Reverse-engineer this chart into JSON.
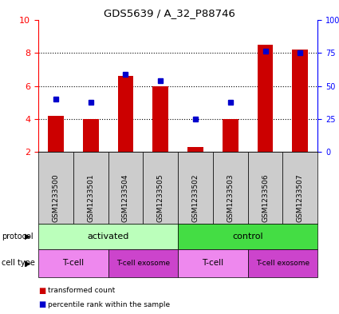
{
  "title": "GDS5639 / A_32_P88746",
  "samples": [
    "GSM1233500",
    "GSM1233501",
    "GSM1233504",
    "GSM1233505",
    "GSM1233502",
    "GSM1233503",
    "GSM1233506",
    "GSM1233507"
  ],
  "red_values": [
    4.2,
    4.0,
    6.6,
    6.0,
    2.3,
    4.0,
    8.5,
    8.2
  ],
  "blue_values": [
    5.2,
    5.0,
    6.7,
    6.3,
    4.0,
    5.0,
    8.1,
    8.0
  ],
  "y_min": 2,
  "y_max": 10,
  "bar_color": "#cc0000",
  "dot_color": "#0000cc",
  "bar_width": 0.45,
  "protocol_activated_color": "#bbffbb",
  "protocol_control_color": "#44dd44",
  "tcell_color": "#ee88ee",
  "tcell_exosome_color": "#cc44cc",
  "sample_bg_color": "#cccccc",
  "protocol_groups": [
    {
      "label": "activated",
      "start": 0,
      "end": 3
    },
    {
      "label": "control",
      "start": 4,
      "end": 7
    }
  ],
  "celltype_groups": [
    {
      "label": "T-cell",
      "start": 0,
      "end": 1,
      "color": "#ee88ee"
    },
    {
      "label": "T-cell exosome",
      "start": 2,
      "end": 3,
      "color": "#cc44cc"
    },
    {
      "label": "T-cell",
      "start": 4,
      "end": 5,
      "color": "#ee88ee"
    },
    {
      "label": "T-cell exosome",
      "start": 6,
      "end": 7,
      "color": "#cc44cc"
    }
  ]
}
